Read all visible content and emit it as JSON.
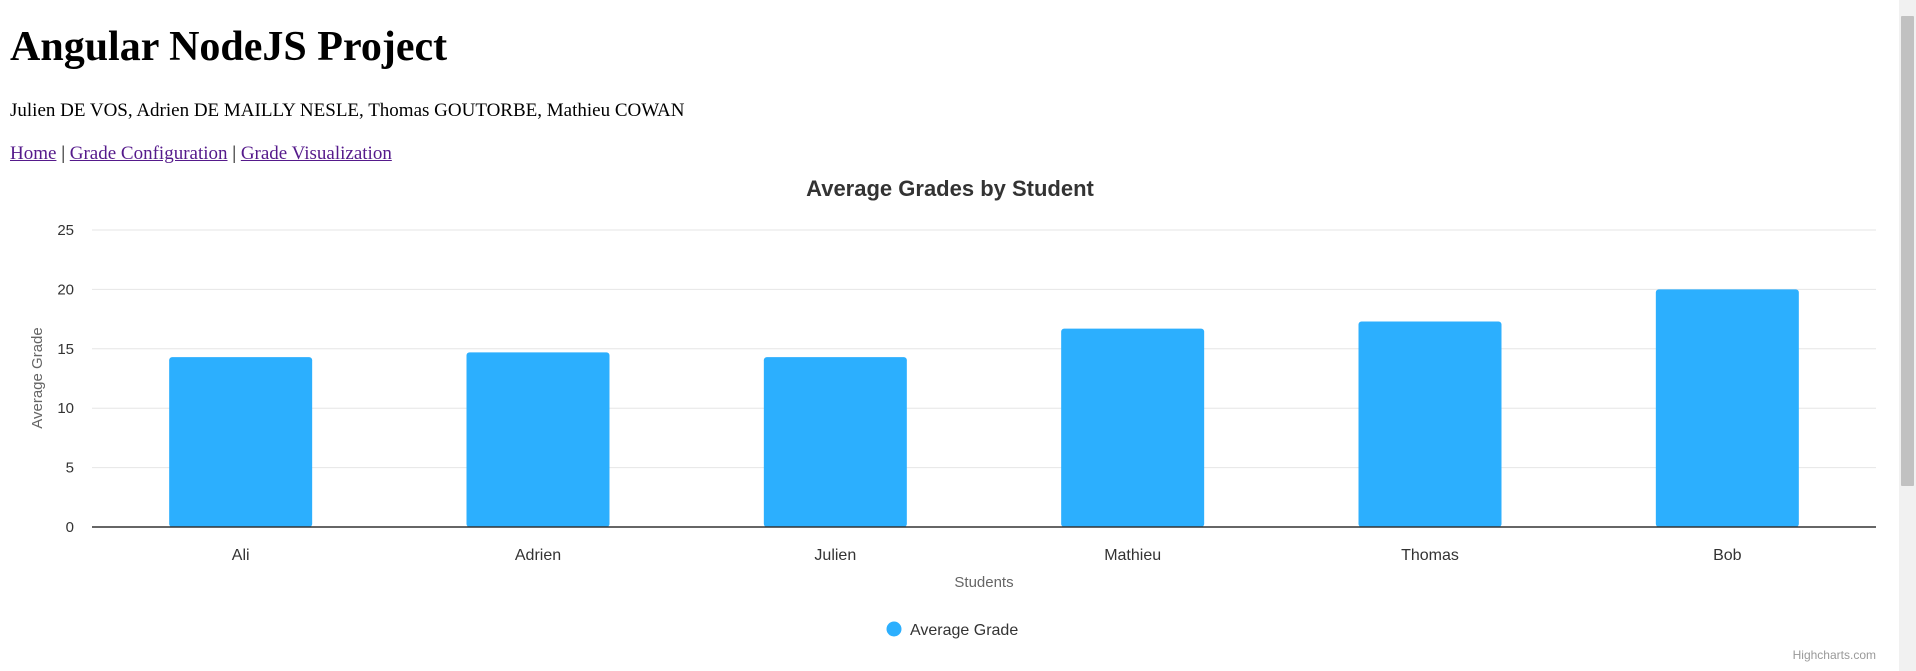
{
  "page": {
    "title": "Angular NodeJS Project",
    "authors": "Julien DE VOS, Adrien DE MAILLY NESLE, Thomas GOUTORBE, Mathieu COWAN"
  },
  "nav": {
    "home": "Home",
    "separator": "|",
    "grade_config": "Grade Configuration",
    "grade_viz": "Grade Visualization"
  },
  "chart_data": {
    "type": "bar",
    "title": "Average Grades by Student",
    "xlabel": "Students",
    "ylabel": "Average Grade",
    "categories": [
      "Ali",
      "Adrien",
      "Julien",
      "Mathieu",
      "Thomas",
      "Bob"
    ],
    "series": [
      {
        "name": "Average Grade",
        "values": [
          14.3,
          14.7,
          14.3,
          16.7,
          17.3,
          20
        ],
        "color": "#2caffe"
      }
    ],
    "yticks": [
      0,
      5,
      10,
      15,
      20,
      25
    ],
    "ylim": [
      0,
      25
    ],
    "grid": true,
    "legend_position": "bottom-center",
    "credits": "Highcharts.com"
  }
}
